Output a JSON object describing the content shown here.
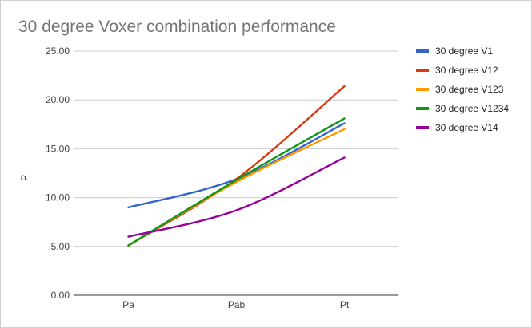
{
  "chart_data": {
    "type": "line",
    "title": "30 degree Voxer combination performance",
    "xlabel": "",
    "ylabel": "P",
    "categories": [
      "Pa",
      "Pab",
      "Pt"
    ],
    "ylim": [
      0,
      25
    ],
    "yticks": [
      0,
      5,
      10,
      15,
      20,
      25
    ],
    "ytick_labels": [
      "0.00",
      "5.00",
      "10.00",
      "15.00",
      "20.00",
      "25.00"
    ],
    "grid": true,
    "smooth": true,
    "legend_position": "right",
    "series": [
      {
        "name": "30 degree V1",
        "color": "#3366cc",
        "values": [
          9.0,
          11.9,
          17.6
        ]
      },
      {
        "name": "30 degree V12",
        "color": "#dc3912",
        "values": [
          5.1,
          11.9,
          21.4
        ]
      },
      {
        "name": "30 degree V123",
        "color": "#ff9900",
        "values": [
          5.1,
          11.6,
          17.0
        ]
      },
      {
        "name": "30 degree V1234",
        "color": "#109618",
        "values": [
          5.1,
          11.8,
          18.1
        ]
      },
      {
        "name": "30 degree V14",
        "color": "#990099",
        "values": [
          6.0,
          8.7,
          14.1
        ]
      }
    ]
  }
}
